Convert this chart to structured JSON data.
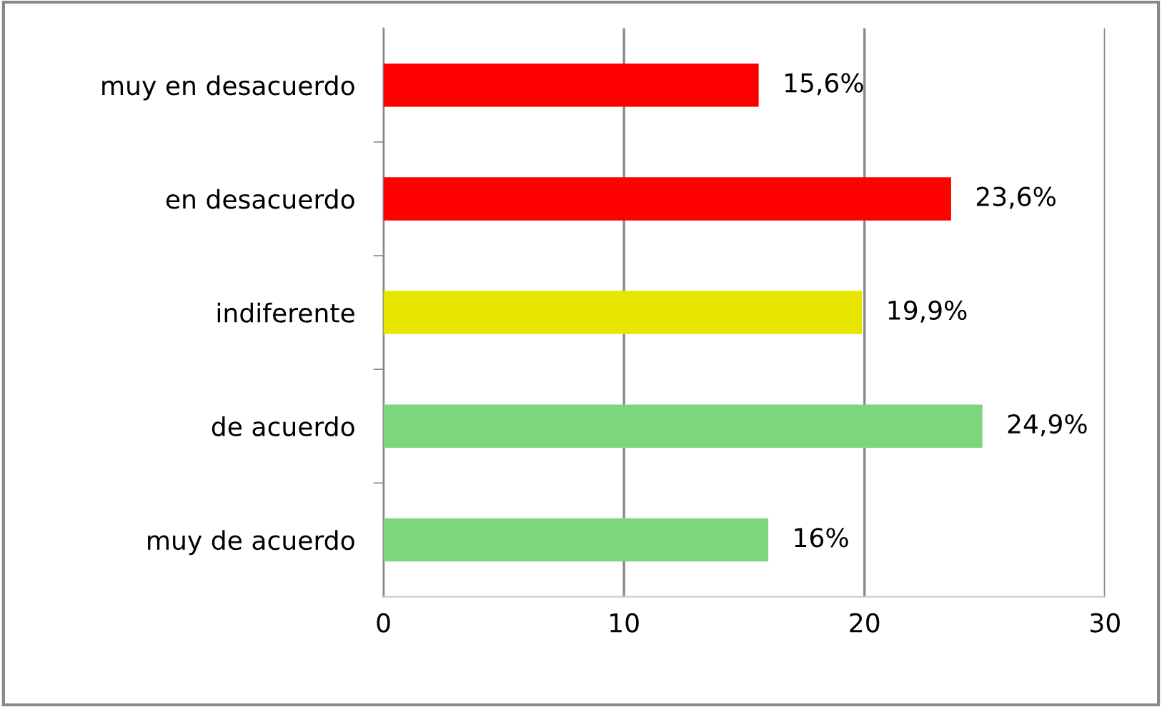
{
  "chart_data": {
    "type": "bar",
    "orientation": "horizontal",
    "categories": [
      "muy en desacuerdo",
      "en desacuerdo",
      "indiferente",
      "de acuerdo",
      "muy de acuerdo"
    ],
    "values": [
      15.6,
      23.6,
      19.9,
      24.9,
      16
    ],
    "colors": [
      "#ff0000",
      "#ff0000",
      "#e6e600",
      "#7dd67d",
      "#7dd67d"
    ],
    "value_labels": [
      "15,6%",
      "23,6%",
      "19,9%",
      "24,9%",
      "16%"
    ],
    "xlim": [
      0,
      30
    ],
    "xticks": [
      0,
      10,
      20,
      30
    ],
    "grid": "x",
    "legend": false
  }
}
